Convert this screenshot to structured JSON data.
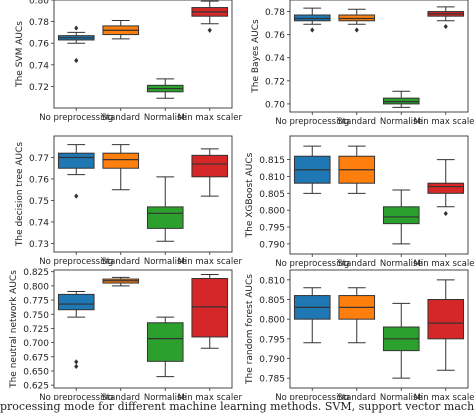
{
  "caption": "processing mode for different machine learning methods. SVM, support vector machine; AUC, area under the cu",
  "chart_data": [
    {
      "type": "box",
      "ylabel": "The SVM AUCs",
      "categories": [
        "No preprocessing",
        "Standard",
        "Normalise",
        "Min max scaler"
      ],
      "ylim": [
        0.7,
        0.8
      ],
      "yticks": [
        "0.72",
        "0.74",
        "0.76",
        "0.78",
        "0.80"
      ],
      "tick_values": [
        0.72,
        0.74,
        0.76,
        0.78,
        0.8
      ],
      "boxes": [
        {
          "whislo": 0.76,
          "q1": 0.763,
          "med": 0.765,
          "q3": 0.767,
          "whishi": 0.77,
          "fliers": [
            0.774,
            0.744
          ]
        },
        {
          "whislo": 0.764,
          "q1": 0.768,
          "med": 0.772,
          "q3": 0.776,
          "whishi": 0.781,
          "fliers": []
        },
        {
          "whislo": 0.709,
          "q1": 0.715,
          "med": 0.718,
          "q3": 0.721,
          "whishi": 0.727,
          "fliers": []
        },
        {
          "whislo": 0.778,
          "q1": 0.785,
          "med": 0.789,
          "q3": 0.793,
          "whishi": 0.799,
          "fliers": [
            0.772
          ]
        }
      ]
    },
    {
      "type": "box",
      "ylabel": "The Bayes AUCs",
      "categories": [
        "No preprocessing",
        "Standard",
        "Normalise",
        "Min max scaler"
      ],
      "ylim": [
        0.693,
        0.79
      ],
      "yticks": [
        "0.70",
        "0.72",
        "0.74",
        "0.76",
        "0.78"
      ],
      "tick_values": [
        0.7,
        0.72,
        0.74,
        0.76,
        0.78
      ],
      "boxes": [
        {
          "whislo": 0.769,
          "q1": 0.772,
          "med": 0.774,
          "q3": 0.777,
          "whishi": 0.783,
          "fliers": [
            0.764
          ]
        },
        {
          "whislo": 0.769,
          "q1": 0.772,
          "med": 0.774,
          "q3": 0.777,
          "whishi": 0.782,
          "fliers": [
            0.764
          ]
        },
        {
          "whislo": 0.697,
          "q1": 0.7,
          "med": 0.702,
          "q3": 0.705,
          "whishi": 0.711,
          "fliers": []
        },
        {
          "whislo": 0.772,
          "q1": 0.776,
          "med": 0.778,
          "q3": 0.78,
          "whishi": 0.784,
          "fliers": [
            0.767
          ]
        }
      ]
    },
    {
      "type": "box",
      "ylabel": "The decision tree AUCs",
      "categories": [
        "No preprocessing",
        "Standard",
        "Normalise",
        "Min max scaler"
      ],
      "ylim": [
        0.726,
        0.78
      ],
      "yticks": [
        "0.73",
        "0.74",
        "0.75",
        "0.76",
        "0.77"
      ],
      "tick_values": [
        0.73,
        0.74,
        0.75,
        0.76,
        0.77
      ],
      "boxes": [
        {
          "whislo": 0.762,
          "q1": 0.765,
          "med": 0.77,
          "q3": 0.772,
          "whishi": 0.776,
          "fliers": [
            0.752
          ]
        },
        {
          "whislo": 0.755,
          "q1": 0.765,
          "med": 0.769,
          "q3": 0.772,
          "whishi": 0.776,
          "fliers": []
        },
        {
          "whislo": 0.731,
          "q1": 0.737,
          "med": 0.744,
          "q3": 0.747,
          "whishi": 0.761,
          "fliers": []
        },
        {
          "whislo": 0.752,
          "q1": 0.761,
          "med": 0.767,
          "q3": 0.771,
          "whishi": 0.774,
          "fliers": []
        }
      ]
    },
    {
      "type": "box",
      "ylabel": "The XGBoost AUCs",
      "categories": [
        "No preprocessing",
        "Standard",
        "Normalise",
        "Min max scaler"
      ],
      "ylim": [
        0.787,
        0.822
      ],
      "yticks": [
        "0.790",
        "0.795",
        "0.800",
        "0.805",
        "0.810",
        "0.815"
      ],
      "tick_values": [
        0.79,
        0.795,
        0.8,
        0.805,
        0.81,
        0.815
      ],
      "boxes": [
        {
          "whislo": 0.805,
          "q1": 0.808,
          "med": 0.812,
          "q3": 0.816,
          "whishi": 0.819,
          "fliers": []
        },
        {
          "whislo": 0.805,
          "q1": 0.808,
          "med": 0.812,
          "q3": 0.816,
          "whishi": 0.819,
          "fliers": []
        },
        {
          "whislo": 0.79,
          "q1": 0.796,
          "med": 0.798,
          "q3": 0.801,
          "whishi": 0.806,
          "fliers": []
        },
        {
          "whislo": 0.801,
          "q1": 0.805,
          "med": 0.807,
          "q3": 0.808,
          "whishi": 0.815,
          "fliers": [
            0.799
          ]
        }
      ]
    },
    {
      "type": "box",
      "ylabel": "The neutral network AUCs",
      "categories": [
        "No preprocessing",
        "Standard",
        "Normalise",
        "Min max scaler"
      ],
      "ylim": [
        0.62,
        0.828
      ],
      "yticks": [
        "0.625",
        "0.650",
        "0.675",
        "0.700",
        "0.725",
        "0.750",
        "0.775",
        "0.800",
        "0.825"
      ],
      "tick_values": [
        0.625,
        0.65,
        0.675,
        0.7,
        0.725,
        0.75,
        0.775,
        0.8,
        0.825
      ],
      "boxes": [
        {
          "whislo": 0.745,
          "q1": 0.758,
          "med": 0.768,
          "q3": 0.785,
          "whishi": 0.79,
          "fliers": [
            0.666,
            0.658
          ]
        },
        {
          "whislo": 0.8,
          "q1": 0.805,
          "med": 0.809,
          "q3": 0.812,
          "whishi": 0.815,
          "fliers": []
        },
        {
          "whislo": 0.64,
          "q1": 0.667,
          "med": 0.707,
          "q3": 0.735,
          "whishi": 0.745,
          "fliers": []
        },
        {
          "whislo": 0.69,
          "q1": 0.71,
          "med": 0.763,
          "q3": 0.813,
          "whishi": 0.82,
          "fliers": []
        }
      ]
    },
    {
      "type": "box",
      "ylabel": "The random forest AUCs",
      "categories": [
        "No preprocessing",
        "Standard",
        "Normalise",
        "Min max scaler"
      ],
      "ylim": [
        0.7825,
        0.8125
      ],
      "yticks": [
        "0.785",
        "0.790",
        "0.795",
        "0.800",
        "0.805",
        "0.810"
      ],
      "tick_values": [
        0.785,
        0.79,
        0.795,
        0.8,
        0.805,
        0.81
      ],
      "boxes": [
        {
          "whislo": 0.794,
          "q1": 0.8,
          "med": 0.803,
          "q3": 0.806,
          "whishi": 0.808,
          "fliers": []
        },
        {
          "whislo": 0.794,
          "q1": 0.8,
          "med": 0.803,
          "q3": 0.806,
          "whishi": 0.808,
          "fliers": []
        },
        {
          "whislo": 0.785,
          "q1": 0.792,
          "med": 0.795,
          "q3": 0.798,
          "whishi": 0.804,
          "fliers": []
        },
        {
          "whislo": 0.787,
          "q1": 0.795,
          "med": 0.799,
          "q3": 0.805,
          "whishi": 0.81,
          "fliers": []
        }
      ]
    }
  ],
  "colors": {
    "No preprocessing": "#1f77b4",
    "Standard": "#ff7f0e",
    "Normalise": "#2ca02c",
    "Min max scaler": "#d62728",
    "axis": "#333333"
  }
}
